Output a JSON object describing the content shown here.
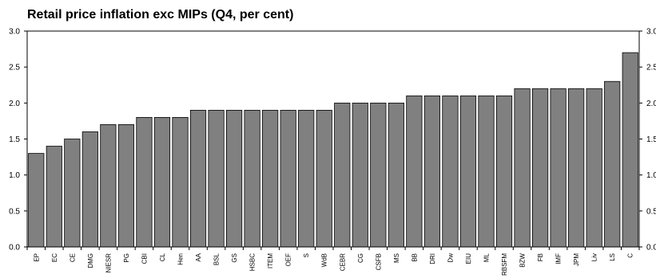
{
  "chart_data": {
    "type": "bar",
    "title": "Retail price inflation exc MIPs (Q4, per cent)",
    "xlabel": "",
    "ylabel": "",
    "ylim": [
      0,
      3.0
    ],
    "yticks": [
      "0.0",
      "0.5",
      "1.0",
      "1.5",
      "2.0",
      "2.5",
      "3.0"
    ],
    "y_axes": [
      "left",
      "right"
    ],
    "grid": false,
    "legend": "none",
    "categories": [
      "EP",
      "EC",
      "CE",
      "DMG",
      "NIESR",
      "PG",
      "CBI",
      "CL",
      "Hen",
      "AA",
      "BSL",
      "GS",
      "HSBC",
      "ITEM",
      "OEF",
      "S",
      "WdB",
      "CEBR",
      "CG",
      "CSFB",
      "MS",
      "BB",
      "DRI",
      "Dw",
      "EIU",
      "ML",
      "RBSFM",
      "BZW",
      "FB",
      "IMF",
      "JPM",
      "Liv",
      "LS",
      "C"
    ],
    "values": [
      1.3,
      1.4,
      1.5,
      1.6,
      1.7,
      1.7,
      1.8,
      1.8,
      1.8,
      1.9,
      1.9,
      1.9,
      1.9,
      1.9,
      1.9,
      1.9,
      1.9,
      2.0,
      2.0,
      2.0,
      2.0,
      2.1,
      2.1,
      2.1,
      2.1,
      2.1,
      2.1,
      2.2,
      2.2,
      2.2,
      2.2,
      2.2,
      2.3,
      2.7
    ],
    "colors": {
      "bar": "#808080",
      "bar_stroke": "#000000",
      "axis": "#000000"
    }
  }
}
